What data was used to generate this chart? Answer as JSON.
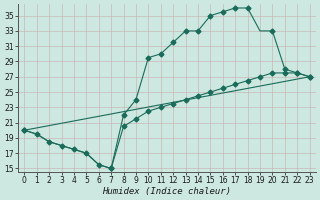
{
  "xlabel": "Humidex (Indice chaleur)",
  "bg_color": "#cce8e0",
  "line_color": "#1a6b5a",
  "grid_color": "#b0d0c8",
  "xlim": [
    -0.5,
    23.5
  ],
  "ylim": [
    14.5,
    36.5
  ],
  "yticks": [
    15,
    17,
    19,
    21,
    23,
    25,
    27,
    29,
    31,
    33,
    35
  ],
  "xticks": [
    0,
    1,
    2,
    3,
    4,
    5,
    6,
    7,
    8,
    9,
    10,
    11,
    12,
    13,
    14,
    15,
    16,
    17,
    18,
    19,
    20,
    21,
    22,
    23
  ],
  "line1_x": [
    0,
    1,
    2,
    3,
    4,
    5,
    6,
    7,
    8,
    9,
    10,
    11,
    12,
    13,
    14,
    15,
    16,
    17,
    18,
    19,
    20,
    21,
    22,
    23
  ],
  "line1_y": [
    20,
    19.5,
    18.5,
    18,
    17.5,
    17,
    15.5,
    15,
    22,
    24,
    29.5,
    30,
    31.5,
    33,
    33,
    35,
    35.5,
    36,
    36,
    33,
    33,
    28,
    27.5,
    27
  ],
  "line2_x": [
    0,
    1,
    2,
    3,
    4,
    5,
    6,
    7,
    8,
    9,
    10,
    11,
    12,
    13,
    14,
    15,
    16,
    17,
    18,
    19,
    20,
    21,
    22,
    23
  ],
  "line2_y": [
    20,
    19.5,
    18.5,
    18,
    17.5,
    17,
    15.5,
    15,
    20.5,
    21.5,
    22.5,
    23,
    23.5,
    24,
    24.5,
    25,
    25.5,
    26,
    26.5,
    27,
    27.5,
    27.5,
    27.5,
    27
  ],
  "line3_x": [
    0,
    23
  ],
  "line3_y": [
    20,
    27
  ],
  "markers1_x": [
    0,
    1,
    2,
    3,
    4,
    5,
    6,
    7,
    8,
    9,
    10,
    11,
    12,
    13,
    14,
    15,
    16,
    17,
    18,
    20,
    21,
    22,
    23
  ],
  "markers1_y": [
    20,
    19.5,
    18.5,
    18,
    17.5,
    17,
    15.5,
    15,
    22,
    24,
    29.5,
    30,
    31.5,
    33,
    33,
    35,
    35.5,
    36,
    36,
    33,
    28,
    27.5,
    27
  ],
  "markers2_x": [
    0,
    7,
    8,
    9,
    10,
    11,
    12,
    13,
    14,
    15,
    16,
    17,
    18,
    19,
    20,
    21,
    22,
    23
  ],
  "markers2_y": [
    20,
    15,
    20.5,
    21.5,
    22.5,
    23,
    23.5,
    24,
    24.5,
    25,
    25.5,
    26,
    26.5,
    27,
    27.5,
    27.5,
    27.5,
    27
  ]
}
